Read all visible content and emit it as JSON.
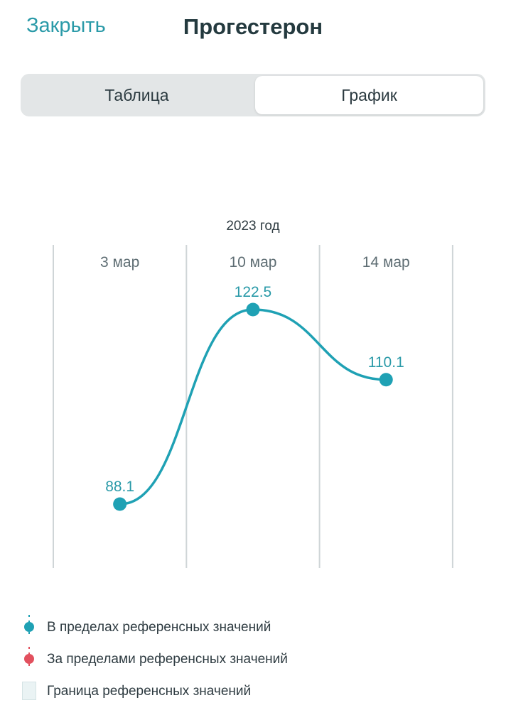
{
  "header": {
    "close_label": "Закрыть",
    "title": "Прогестерон"
  },
  "tabs": [
    {
      "label": "Таблица",
      "selected": false
    },
    {
      "label": "График",
      "selected": true
    }
  ],
  "colors": {
    "accent": "#1fa1b4",
    "accent_text": "#2a9aa8",
    "out_of_range": "#e2505e",
    "reference_band": "#eaf3f4",
    "grid": "#cfd5d7"
  },
  "chart_data": {
    "type": "line",
    "title": "2023 год",
    "categories": [
      "3 мар",
      "10 мар",
      "14 мар"
    ],
    "series": [
      {
        "values": [
          88.1,
          122.5,
          110.1
        ]
      }
    ],
    "data_labels": [
      "88.1",
      "122.5",
      "110.1"
    ],
    "grid": true,
    "legend_placement": "bottom"
  },
  "legend": {
    "items": [
      {
        "label": "В пределах референсных значений",
        "icon": "teal-dot-icon"
      },
      {
        "label": "За пределами референсных значений",
        "icon": "red-dot-icon"
      },
      {
        "label": "Граница референсных значений",
        "icon": "reference-box-icon"
      }
    ]
  }
}
